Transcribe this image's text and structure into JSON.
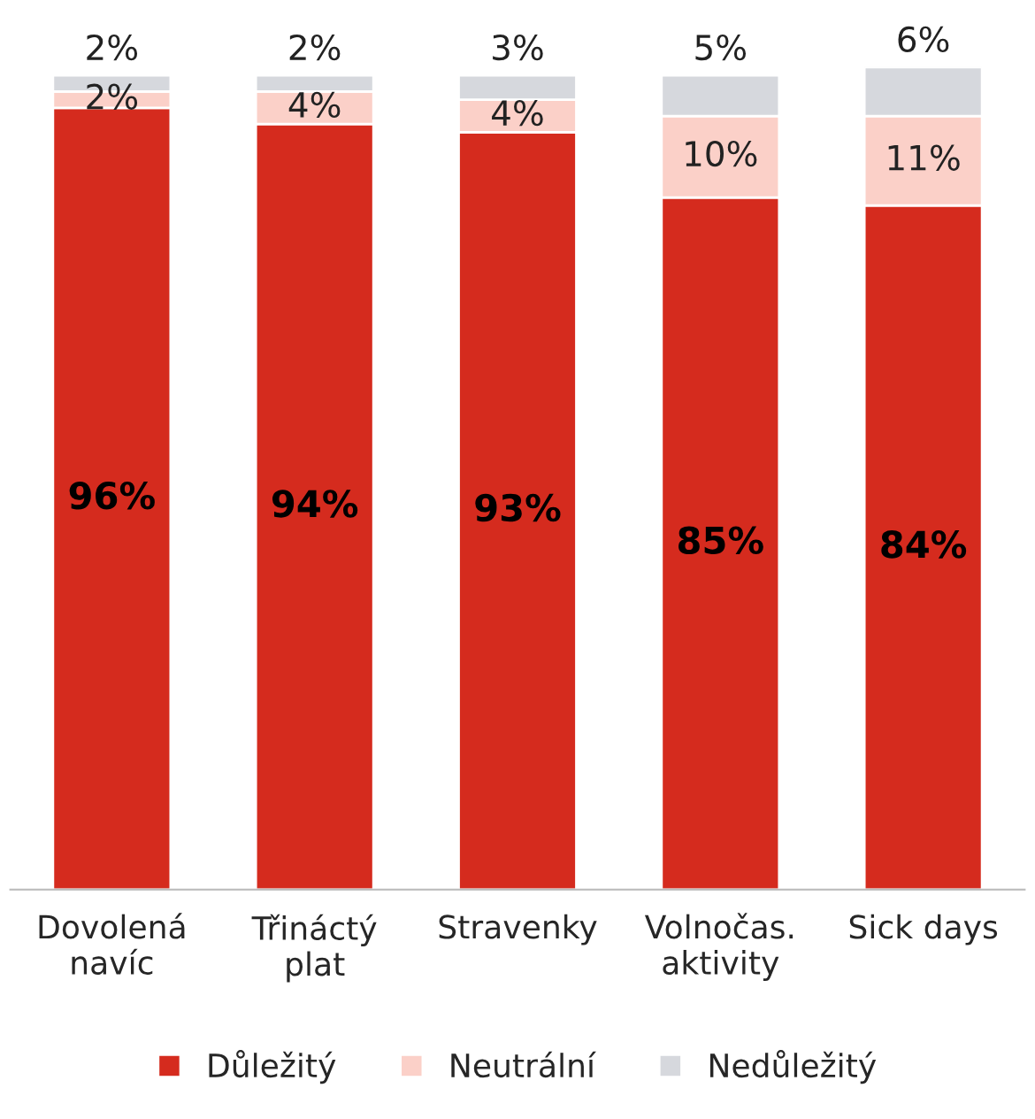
{
  "chart_data": {
    "type": "bar",
    "stacked": true,
    "legend": "bottom",
    "grid": false,
    "categories": [
      "Dovolená\nnavíc",
      "Třináctý\nplat",
      "Stravenky",
      "Volnočas.\naktivity",
      "Sick days"
    ],
    "series": [
      {
        "name": "Důležitý",
        "color": "#d52b1e",
        "values": [
          96,
          94,
          93,
          85,
          84
        ],
        "value_labels": [
          "96%",
          "94%",
          "93%",
          "85%",
          "84%"
        ]
      },
      {
        "name": "Neutrální",
        "color": "#fbd0c8",
        "values": [
          2,
          4,
          4,
          10,
          11
        ],
        "value_labels": [
          "2%",
          "4%",
          "4%",
          "10%",
          "11%"
        ]
      },
      {
        "name": "Nedůležitý",
        "color": "#d6d8dd",
        "values": [
          2,
          2,
          3,
          5,
          6
        ],
        "value_labels": [
          "2%",
          "2%",
          "3%",
          "5%",
          "6%"
        ]
      }
    ]
  }
}
